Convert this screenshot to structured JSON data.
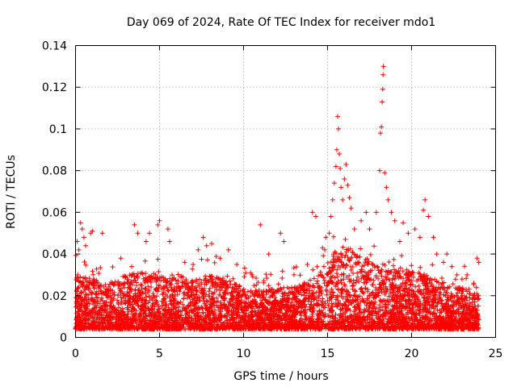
{
  "chart_data": {
    "type": "scatter",
    "title": "Day 069 of 2024, Rate Of TEC Index for receiver mdo1",
    "xlabel": "GPS time / hours",
    "ylabel": "ROTI / TECUs",
    "xlim": [
      0,
      25
    ],
    "ylim": [
      0,
      0.14
    ],
    "xticks": [
      "0",
      "5",
      "10",
      "15",
      "20",
      "25"
    ],
    "yticks": [
      "0",
      "0.02",
      "0.04",
      "0.06",
      "0.08",
      "0.1",
      "0.12",
      "0.14"
    ],
    "grid": true,
    "marker": "+",
    "color": "#ff0000",
    "series": [
      {
        "name": "ROTI",
        "points": [
          [
            0.1,
            0.046
          ],
          [
            0.2,
            0.042
          ],
          [
            0.3,
            0.055
          ],
          [
            0.4,
            0.052
          ],
          [
            0.5,
            0.048
          ],
          [
            0.6,
            0.044
          ],
          [
            0.9,
            0.05
          ],
          [
            1.0,
            0.051
          ],
          [
            1.6,
            0.05
          ],
          [
            2.7,
            0.038
          ],
          [
            3.5,
            0.054
          ],
          [
            3.7,
            0.05
          ],
          [
            4.2,
            0.046
          ],
          [
            4.4,
            0.05
          ],
          [
            4.9,
            0.054
          ],
          [
            5.0,
            0.056
          ],
          [
            5.5,
            0.052
          ],
          [
            5.6,
            0.046
          ],
          [
            6.5,
            0.036
          ],
          [
            7.0,
            0.035
          ],
          [
            7.3,
            0.042
          ],
          [
            7.6,
            0.048
          ],
          [
            7.8,
            0.044
          ],
          [
            8.1,
            0.045
          ],
          [
            8.6,
            0.038
          ],
          [
            9.1,
            0.042
          ],
          [
            9.6,
            0.035
          ],
          [
            10.5,
            0.03
          ],
          [
            11.0,
            0.054
          ],
          [
            11.5,
            0.04
          ],
          [
            12.2,
            0.05
          ],
          [
            12.4,
            0.046
          ],
          [
            13.0,
            0.03
          ],
          [
            13.8,
            0.035
          ],
          [
            14.1,
            0.06
          ],
          [
            14.3,
            0.058
          ],
          [
            14.7,
            0.043
          ],
          [
            14.9,
            0.048
          ],
          [
            15.1,
            0.05
          ],
          [
            15.2,
            0.058
          ],
          [
            15.3,
            0.066
          ],
          [
            15.4,
            0.074
          ],
          [
            15.5,
            0.082
          ],
          [
            15.55,
            0.09
          ],
          [
            15.6,
            0.106
          ],
          [
            15.65,
            0.1
          ],
          [
            15.7,
            0.088
          ],
          [
            15.75,
            0.081
          ],
          [
            15.8,
            0.072
          ],
          [
            15.9,
            0.066
          ],
          [
            16.0,
            0.076
          ],
          [
            16.1,
            0.083
          ],
          [
            16.2,
            0.073
          ],
          [
            16.3,
            0.067
          ],
          [
            16.4,
            0.062
          ],
          [
            16.6,
            0.052
          ],
          [
            17.0,
            0.056
          ],
          [
            17.3,
            0.06
          ],
          [
            17.5,
            0.052
          ],
          [
            17.9,
            0.06
          ],
          [
            18.1,
            0.08
          ],
          [
            18.15,
            0.098
          ],
          [
            18.2,
            0.101
          ],
          [
            18.25,
            0.113
          ],
          [
            18.28,
            0.119
          ],
          [
            18.3,
            0.126
          ],
          [
            18.32,
            0.13
          ],
          [
            18.4,
            0.079
          ],
          [
            18.5,
            0.072
          ],
          [
            18.6,
            0.066
          ],
          [
            18.8,
            0.06
          ],
          [
            19.0,
            0.056
          ],
          [
            19.3,
            0.046
          ],
          [
            19.5,
            0.055
          ],
          [
            19.8,
            0.05
          ],
          [
            20.2,
            0.052
          ],
          [
            20.5,
            0.048
          ],
          [
            20.7,
            0.061
          ],
          [
            20.8,
            0.066
          ],
          [
            21.0,
            0.058
          ],
          [
            21.3,
            0.048
          ],
          [
            21.5,
            0.04
          ],
          [
            21.9,
            0.036
          ],
          [
            22.1,
            0.04
          ],
          [
            22.4,
            0.034
          ],
          [
            22.7,
            0.03
          ],
          [
            23.0,
            0.028
          ],
          [
            23.3,
            0.03
          ],
          [
            23.7,
            0.026
          ],
          [
            23.9,
            0.038
          ],
          [
            24.0,
            0.036
          ]
        ],
        "dense_band": {
          "description": "background cloud of measurements between 0.004 and 0.03 TECUs across all hours",
          "envelope": [
            [
              0,
              0.03
            ],
            [
              1,
              0.028
            ],
            [
              2,
              0.026
            ],
            [
              3,
              0.03
            ],
            [
              4,
              0.032
            ],
            [
              5,
              0.03
            ],
            [
              6,
              0.026
            ],
            [
              7,
              0.028
            ],
            [
              8,
              0.03
            ],
            [
              9,
              0.028
            ],
            [
              10,
              0.024
            ],
            [
              11,
              0.022
            ],
            [
              12,
              0.024
            ],
            [
              13,
              0.024
            ],
            [
              14,
              0.028
            ],
            [
              15,
              0.038
            ],
            [
              16,
              0.045
            ],
            [
              17,
              0.038
            ],
            [
              18,
              0.036
            ],
            [
              19,
              0.034
            ],
            [
              20,
              0.032
            ],
            [
              21,
              0.03
            ],
            [
              22,
              0.026
            ],
            [
              23,
              0.024
            ],
            [
              24,
              0.022
            ]
          ],
          "floor": 0.004,
          "hours_range": [
            0,
            24
          ]
        }
      }
    ]
  }
}
